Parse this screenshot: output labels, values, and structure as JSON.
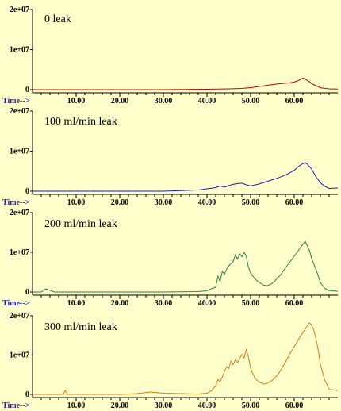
{
  "chart_data": [
    {
      "type": "line",
      "title": "0 leak",
      "xlabel": "Time-->",
      "color": "#cc0000",
      "xlim": [
        0,
        70
      ],
      "ylim": [
        0,
        20000000
      ],
      "x_ticks": [
        "10.00",
        "20.00",
        "30.00",
        "40.00",
        "50.00",
        "60.00"
      ],
      "y_ticks": [
        "2e+07",
        "1e+07",
        "0"
      ],
      "series": [
        {
          "x": [
            0,
            10,
            20,
            30,
            40,
            45,
            48,
            50,
            52,
            54,
            56,
            58,
            59,
            60,
            61,
            62,
            62.5,
            63,
            63.5,
            64,
            65,
            66,
            67,
            68,
            70
          ],
          "values": [
            0,
            0,
            0,
            0,
            100000,
            200000,
            300000,
            500000,
            800000,
            1100000,
            1400000,
            1600000,
            1700000,
            1900000,
            2300000,
            2900000,
            2700000,
            2300000,
            2000000,
            1500000,
            1000000,
            500000,
            300000,
            200000,
            150000
          ]
        }
      ]
    },
    {
      "type": "line",
      "title": "100 ml/min leak",
      "xlabel": "Time-->",
      "color": "#1a1acc",
      "xlim": [
        0,
        70
      ],
      "ylim": [
        0,
        20000000
      ],
      "x_ticks": [
        "10.00",
        "20.00",
        "30.00",
        "40.00",
        "50.00",
        "60.00"
      ],
      "y_ticks": [
        "2e+07",
        "1e+07",
        "0"
      ],
      "series": [
        {
          "x": [
            0,
            10,
            20,
            30,
            38,
            40,
            42,
            43,
            44,
            45,
            46,
            47,
            48,
            49,
            50,
            52,
            54,
            56,
            58,
            60,
            61,
            62,
            62.5,
            63,
            63.5,
            64,
            65,
            66,
            67,
            68,
            70
          ],
          "values": [
            0,
            0,
            0,
            0,
            300000,
            600000,
            900000,
            1300000,
            1000000,
            1400000,
            1700000,
            1900000,
            2000000,
            1600000,
            1300000,
            1800000,
            2500000,
            3200000,
            4000000,
            5200000,
            6200000,
            6900000,
            7100000,
            6800000,
            6100000,
            5500000,
            3600000,
            2100000,
            1200000,
            700000,
            800000
          ]
        }
      ]
    },
    {
      "type": "line",
      "title": "200 ml/min leak",
      "xlabel": "Time-->",
      "color": "#2e7d4f",
      "xlim": [
        0,
        70
      ],
      "ylim": [
        0,
        20000000
      ],
      "x_ticks": [
        "10.00",
        "20.00",
        "30.00",
        "40.00",
        "50.00",
        "60.00"
      ],
      "y_ticks": [
        "2e+07",
        "1e+07",
        "0"
      ],
      "series": [
        {
          "x": [
            0,
            2,
            3,
            5,
            10,
            20,
            30,
            38,
            40,
            41,
            42,
            42.5,
            43,
            43.5,
            44,
            44.5,
            45,
            45.5,
            46,
            46.5,
            47,
            47.5,
            48,
            48.5,
            49,
            49.5,
            50,
            51,
            52,
            53,
            54,
            55,
            56,
            57,
            58,
            59,
            60,
            61,
            61.5,
            62,
            62.5,
            63,
            63.5,
            64,
            65,
            66,
            67,
            68,
            70
          ],
          "values": [
            0,
            0,
            800000,
            0,
            0,
            0,
            0,
            100000,
            300000,
            800000,
            1200000,
            4000000,
            2600000,
            5200000,
            4400000,
            5800000,
            6600000,
            7200000,
            7600000,
            9400000,
            8300000,
            9600000,
            8900000,
            10000000,
            9000000,
            6300000,
            4800000,
            3300000,
            2400000,
            1700000,
            1600000,
            2200000,
            3300000,
            4500000,
            6100000,
            7500000,
            9000000,
            10500000,
            11400000,
            12000000,
            12800000,
            11600000,
            10500000,
            8400000,
            5700000,
            2400000,
            900000,
            300000,
            200000
          ]
        }
      ]
    },
    {
      "type": "line",
      "title": "300 ml/min leak",
      "xlabel": "Time-->",
      "color": "#e6770f",
      "xlim": [
        0,
        70
      ],
      "ylim": [
        0,
        20000000
      ],
      "x_ticks": [
        "10.00",
        "20.00",
        "30.00",
        "40.00",
        "50.00",
        "60.00"
      ],
      "y_ticks": [
        "2e+07",
        "1e+07",
        "0"
      ],
      "series": [
        {
          "x": [
            0,
            7,
            7.5,
            8,
            10,
            20,
            24,
            27,
            30,
            38,
            40,
            41,
            42,
            42.5,
            43,
            43.5,
            44,
            44.5,
            45,
            45.5,
            46,
            46.5,
            47,
            47.5,
            48,
            48.5,
            49,
            49.5,
            50,
            51,
            52,
            53,
            54,
            55,
            56,
            57,
            58,
            59,
            60,
            61,
            62,
            62.5,
            63,
            63.5,
            64,
            64.5,
            65,
            65.5,
            66,
            67,
            68,
            70
          ],
          "values": [
            0,
            0,
            1000000,
            0,
            0,
            0,
            200000,
            600000,
            300000,
            100000,
            300000,
            900000,
            2200000,
            3800000,
            3200000,
            4400000,
            5800000,
            7100000,
            6600000,
            8500000,
            7600000,
            8800000,
            8100000,
            9200000,
            10200000,
            9300000,
            11400000,
            9600000,
            6600000,
            4100000,
            3100000,
            2600000,
            2900000,
            3600000,
            4700000,
            6300000,
            8200000,
            10300000,
            12100000,
            14000000,
            15800000,
            16600000,
            17500000,
            18200000,
            17600000,
            16200000,
            14100000,
            11200000,
            7600000,
            3600000,
            1300000,
            1000000
          ]
        }
      ]
    }
  ]
}
